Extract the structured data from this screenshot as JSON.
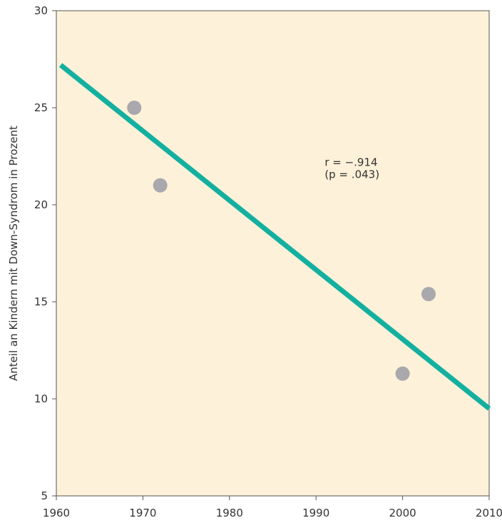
{
  "chart_data": {
    "type": "scatter",
    "title": "",
    "xlabel": "",
    "ylabel": "Anteil an Kindern mit Down-Syndrom in Prozent",
    "xlim": [
      1960,
      2010
    ],
    "ylim": [
      5,
      30
    ],
    "x_ticks": [
      1960,
      1970,
      1980,
      1990,
      2000,
      2010
    ],
    "y_ticks": [
      5,
      10,
      15,
      20,
      25,
      30
    ],
    "x_tick_labels": [
      "1960",
      "1970",
      "1980",
      "1990",
      "2000",
      "2010"
    ],
    "y_tick_labels": [
      "5",
      "10",
      "15",
      "20",
      "25",
      "30"
    ],
    "grid": false,
    "legend": "none",
    "points": [
      {
        "x": 1969,
        "y": 25.0
      },
      {
        "x": 1972,
        "y": 21.0
      },
      {
        "x": 2000,
        "y": 11.3
      },
      {
        "x": 2003,
        "y": 15.4
      }
    ],
    "trendline": {
      "x": [
        1960.5,
        2010
      ],
      "y": [
        27.2,
        9.5
      ]
    },
    "annotation": {
      "line1": "r = −.914",
      "line2": "(p = .043)",
      "x": 1991,
      "y": 22
    },
    "colors": {
      "plot_background": "#fdf1d9",
      "axis": "#555555",
      "points": "#a8a8ad",
      "trendline": "#13b0a0"
    }
  }
}
